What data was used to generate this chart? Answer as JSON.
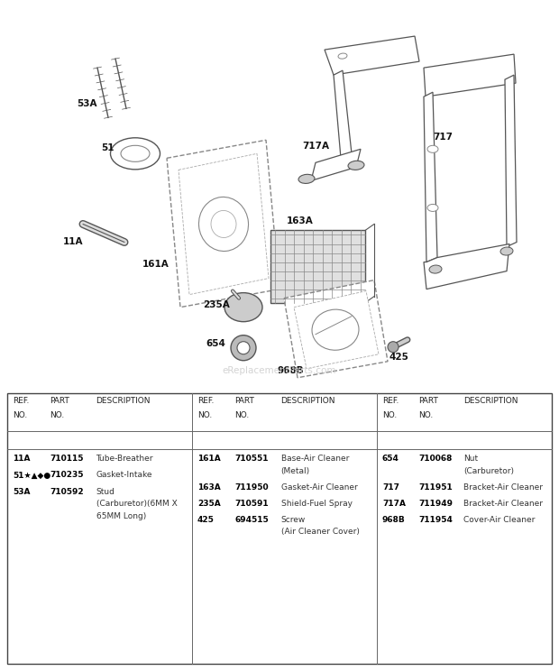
{
  "bg_color": "#ffffff",
  "watermark": "eReplacementParts.com",
  "table_parts": [
    {
      "col": 0,
      "rows": [
        {
          "ref": "11A",
          "part": "710115",
          "desc": "Tube-Breather"
        },
        {
          "ref": "51★▲◆●",
          "part": "710235",
          "desc": "Gasket-Intake"
        },
        {
          "ref": "53A",
          "part": "710592",
          "desc": "Stud\n(Carburetor)(6MM X\n65MM Long)"
        }
      ]
    },
    {
      "col": 1,
      "rows": [
        {
          "ref": "161A",
          "part": "710551",
          "desc": "Base-Air Cleaner\n(Metal)"
        },
        {
          "ref": "163A",
          "part": "711950",
          "desc": "Gasket-Air Cleaner"
        },
        {
          "ref": "235A",
          "part": "710591",
          "desc": "Shield-Fuel Spray"
        },
        {
          "ref": "425",
          "part": "694515",
          "desc": "Screw\n(Air Cleaner Cover)"
        }
      ]
    },
    {
      "col": 2,
      "rows": [
        {
          "ref": "654",
          "part": "710068",
          "desc": "Nut\n(Carburetor)"
        },
        {
          "ref": "717",
          "part": "711951",
          "desc": "Bracket-Air Cleaner"
        },
        {
          "ref": "717A",
          "part": "711949",
          "desc": "Bracket-Air Cleaner"
        },
        {
          "ref": "968B",
          "part": "711954",
          "desc": "Cover-Air Cleaner"
        }
      ]
    }
  ]
}
